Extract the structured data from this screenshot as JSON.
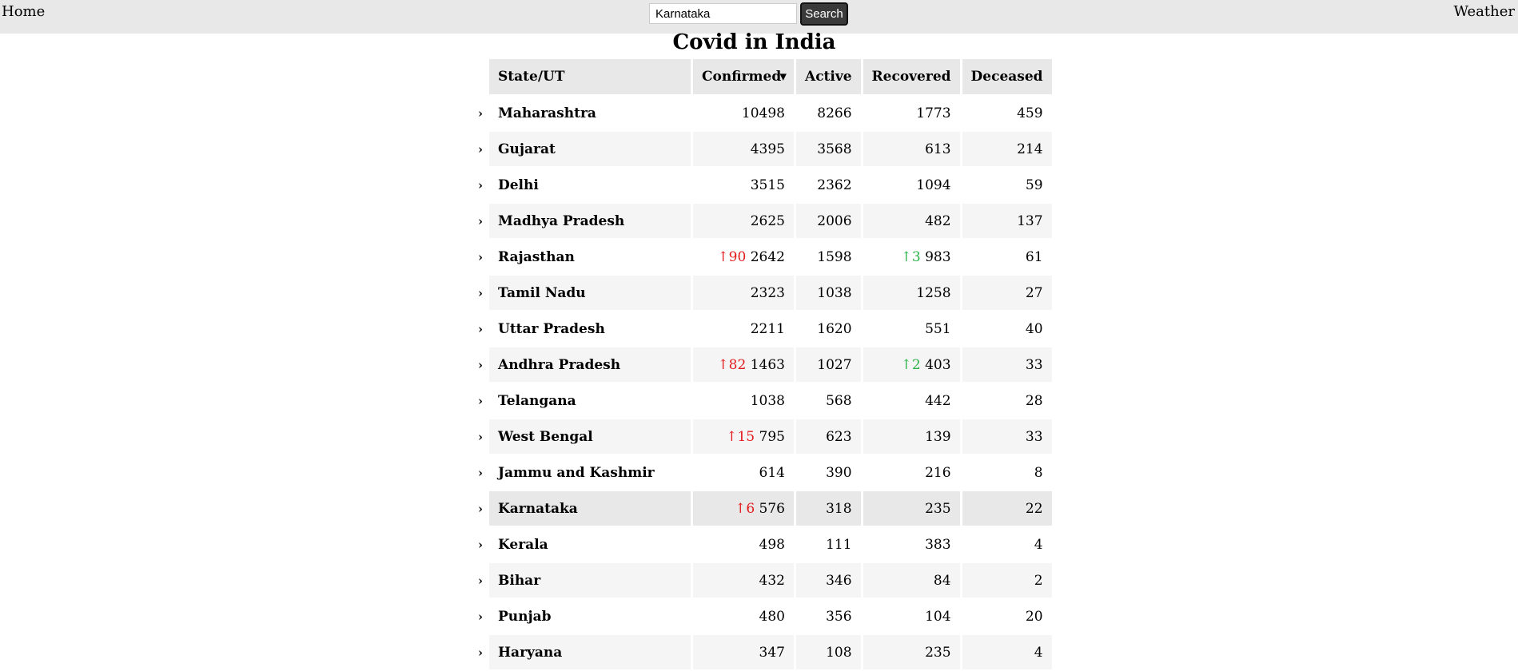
{
  "nav": {
    "home_label": "Home",
    "weather_label": "Weather"
  },
  "search": {
    "value": "Karnataka",
    "button_label": "Search"
  },
  "page_title": "Covid in India",
  "table": {
    "headers": {
      "state": "State/UT",
      "confirmed": "Confirmed",
      "active": "Active",
      "recovered": "Recovered",
      "deceased": "Deceased"
    },
    "sort_indicator": "▼",
    "expand_icon": "›",
    "rows": [
      {
        "state": "Maharashtra",
        "confirmed_delta": "",
        "confirmed": "10498",
        "active": "8266",
        "recovered_delta": "",
        "recovered": "1773",
        "deceased": "459"
      },
      {
        "state": "Gujarat",
        "confirmed_delta": "",
        "confirmed": "4395",
        "active": "3568",
        "recovered_delta": "",
        "recovered": "613",
        "deceased": "214"
      },
      {
        "state": "Delhi",
        "confirmed_delta": "",
        "confirmed": "3515",
        "active": "2362",
        "recovered_delta": "",
        "recovered": "1094",
        "deceased": "59"
      },
      {
        "state": "Madhya Pradesh",
        "confirmed_delta": "",
        "confirmed": "2625",
        "active": "2006",
        "recovered_delta": "",
        "recovered": "482",
        "deceased": "137"
      },
      {
        "state": "Rajasthan",
        "confirmed_delta": "↑90",
        "confirmed": "2642",
        "active": "1598",
        "recovered_delta": "↑3",
        "recovered": "983",
        "deceased": "61"
      },
      {
        "state": "Tamil Nadu",
        "confirmed_delta": "",
        "confirmed": "2323",
        "active": "1038",
        "recovered_delta": "",
        "recovered": "1258",
        "deceased": "27"
      },
      {
        "state": "Uttar Pradesh",
        "confirmed_delta": "",
        "confirmed": "2211",
        "active": "1620",
        "recovered_delta": "",
        "recovered": "551",
        "deceased": "40"
      },
      {
        "state": "Andhra Pradesh",
        "confirmed_delta": "↑82",
        "confirmed": "1463",
        "active": "1027",
        "recovered_delta": "↑2",
        "recovered": "403",
        "deceased": "33"
      },
      {
        "state": "Telangana",
        "confirmed_delta": "",
        "confirmed": "1038",
        "active": "568",
        "recovered_delta": "",
        "recovered": "442",
        "deceased": "28"
      },
      {
        "state": "West Bengal",
        "confirmed_delta": "↑15",
        "confirmed": "795",
        "active": "623",
        "recovered_delta": "",
        "recovered": "139",
        "deceased": "33"
      },
      {
        "state": "Jammu and Kashmir",
        "confirmed_delta": "",
        "confirmed": "614",
        "active": "390",
        "recovered_delta": "",
        "recovered": "216",
        "deceased": "8"
      },
      {
        "state": "Karnataka",
        "confirmed_delta": "↑6",
        "confirmed": "576",
        "active": "318",
        "recovered_delta": "",
        "recovered": "235",
        "deceased": "22"
      },
      {
        "state": "Kerala",
        "confirmed_delta": "",
        "confirmed": "498",
        "active": "111",
        "recovered_delta": "",
        "recovered": "383",
        "deceased": "4"
      },
      {
        "state": "Bihar",
        "confirmed_delta": "",
        "confirmed": "432",
        "active": "346",
        "recovered_delta": "",
        "recovered": "84",
        "deceased": "2"
      },
      {
        "state": "Punjab",
        "confirmed_delta": "",
        "confirmed": "480",
        "active": "356",
        "recovered_delta": "",
        "recovered": "104",
        "deceased": "20"
      },
      {
        "state": "Haryana",
        "confirmed_delta": "",
        "confirmed": "347",
        "active": "108",
        "recovered_delta": "",
        "recovered": "235",
        "deceased": "4"
      }
    ]
  },
  "colors": {
    "confirmed_delta": "#e31a1c",
    "recovered_delta": "#2bb34a",
    "topbar": "#e8e8e8",
    "search_button": "#3a3a3a"
  },
  "highlighted_state": "Karnataka"
}
